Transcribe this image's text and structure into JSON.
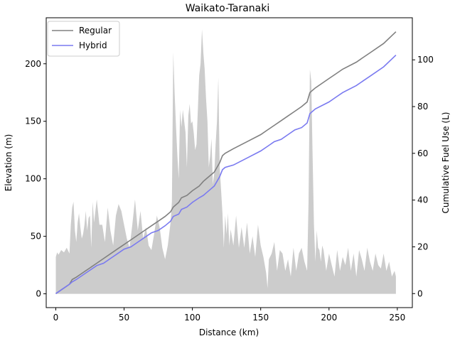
{
  "chart_data": {
    "type": "line",
    "title": "Waikato-Taranaki",
    "xlabel": "Distance (km)",
    "ylabel": "Elevation (m)",
    "y2label": "Cumulative Fuel Use (L)",
    "xlim": [
      -7,
      261
    ],
    "ylim": [
      -12,
      240
    ],
    "y2lim": [
      -6,
      118
    ],
    "xticks": [
      0,
      50,
      100,
      150,
      200,
      250
    ],
    "yticks": [
      0,
      50,
      100,
      150,
      200
    ],
    "y2ticks": [
      0,
      20,
      40,
      60,
      80,
      100
    ],
    "legend": {
      "position": "top-left",
      "entries": [
        "Regular",
        "Hybrid"
      ]
    },
    "elevation": {
      "color": "#cccccc",
      "x": [
        0,
        1,
        2,
        4,
        6,
        8,
        10,
        11,
        12,
        13,
        14,
        15,
        16,
        17,
        18,
        19,
        20,
        21,
        22,
        23,
        24,
        25,
        26,
        27,
        28,
        30,
        32,
        34,
        36,
        38,
        40,
        42,
        44,
        46,
        48,
        50,
        52,
        54,
        56,
        58,
        60,
        62,
        64,
        66,
        68,
        70,
        72,
        74,
        76,
        78,
        80,
        82,
        84,
        85,
        86,
        87,
        88,
        89,
        90,
        91,
        92,
        93,
        94,
        95,
        96,
        97,
        98,
        99,
        100,
        101,
        102,
        103,
        104,
        105,
        106,
        107,
        108,
        109,
        110,
        111,
        112,
        113,
        114,
        115,
        116,
        117,
        118,
        119,
        120,
        121,
        122,
        123,
        124,
        125,
        126,
        127,
        128,
        130,
        132,
        134,
        136,
        138,
        140,
        142,
        144,
        146,
        148,
        150,
        152,
        154,
        155,
        156,
        158,
        160,
        162,
        164,
        166,
        168,
        170,
        172,
        174,
        176,
        178,
        180,
        182,
        184,
        185,
        186,
        187,
        188,
        189,
        190,
        191,
        192,
        193,
        194,
        195,
        196,
        198,
        200,
        202,
        204,
        206,
        208,
        210,
        212,
        214,
        216,
        218,
        220,
        222,
        224,
        226,
        228,
        230,
        232,
        234,
        236,
        238,
        240,
        242,
        244,
        246,
        248,
        249
      ],
      "y": [
        32,
        36,
        34,
        38,
        36,
        40,
        35,
        60,
        75,
        80,
        55,
        45,
        62,
        70,
        58,
        48,
        52,
        60,
        72,
        55,
        66,
        68,
        40,
        80,
        62,
        82,
        60,
        60,
        45,
        75,
        55,
        42,
        68,
        78,
        72,
        60,
        48,
        40,
        60,
        82,
        55,
        72,
        48,
        58,
        42,
        38,
        52,
        68,
        58,
        40,
        30,
        42,
        62,
        80,
        210,
        175,
        145,
        120,
        100,
        160,
        145,
        160,
        150,
        140,
        110,
        155,
        165,
        148,
        150,
        140,
        125,
        130,
        160,
        190,
        200,
        230,
        210,
        195,
        170,
        150,
        110,
        120,
        135,
        95,
        105,
        130,
        150,
        188,
        110,
        90,
        70,
        40,
        68,
        52,
        70,
        42,
        56,
        42,
        68,
        40,
        58,
        40,
        62,
        35,
        50,
        32,
        60,
        42,
        32,
        18,
        5,
        30,
        35,
        45,
        20,
        38,
        35,
        20,
        30,
        15,
        40,
        20,
        35,
        40,
        28,
        20,
        80,
        195,
        185,
        120,
        60,
        28,
        55,
        40,
        38,
        28,
        42,
        38,
        20,
        35,
        25,
        15,
        38,
        20,
        32,
        25,
        40,
        20,
        35,
        15,
        38,
        30,
        20,
        40,
        28,
        20,
        35,
        25,
        22,
        35,
        20,
        28,
        15,
        20,
        15
      ]
    },
    "series": [
      {
        "name": "Regular",
        "color": "#808080",
        "x": [
          0,
          5,
          10,
          12,
          15,
          20,
          25,
          30,
          35,
          40,
          45,
          50,
          55,
          60,
          65,
          70,
          75,
          80,
          84,
          86,
          90,
          92,
          96,
          100,
          105,
          108,
          110,
          114,
          116,
          118,
          120,
          122,
          124,
          130,
          140,
          150,
          155,
          160,
          165,
          170,
          175,
          180,
          184,
          186,
          188,
          190,
          200,
          205,
          210,
          220,
          225,
          230,
          240,
          249
        ],
        "y": [
          0,
          2,
          4,
          6,
          7,
          9,
          11,
          13,
          15,
          17,
          19,
          21,
          23,
          25,
          27,
          29,
          31,
          33,
          35,
          37,
          39,
          41,
          42,
          44,
          46,
          48,
          49,
          51,
          52,
          54,
          56,
          59,
          60,
          62,
          65,
          68,
          70,
          72,
          74,
          76,
          78,
          80,
          82,
          86,
          87,
          88,
          92,
          94,
          96,
          99,
          101,
          103,
          107,
          112
        ]
      },
      {
        "name": "Hybrid",
        "color": "#7a7af0",
        "x": [
          0,
          5,
          10,
          12,
          15,
          20,
          25,
          30,
          35,
          40,
          45,
          50,
          55,
          60,
          65,
          70,
          75,
          80,
          84,
          86,
          90,
          92,
          96,
          100,
          105,
          108,
          110,
          114,
          116,
          118,
          120,
          122,
          124,
          130,
          140,
          150,
          155,
          160,
          165,
          170,
          175,
          180,
          184,
          186,
          188,
          190,
          200,
          205,
          210,
          220,
          225,
          230,
          240,
          249
        ],
        "y": [
          0,
          2,
          4,
          5,
          6,
          8,
          10,
          12,
          13,
          15,
          17,
          19,
          20,
          22,
          24,
          26,
          27,
          29,
          31,
          33,
          34,
          36,
          37,
          39,
          41,
          42,
          43,
          45,
          46,
          48,
          50,
          53,
          54,
          55,
          58,
          61,
          63,
          65,
          66,
          68,
          70,
          71,
          73,
          77,
          78,
          79,
          82,
          84,
          86,
          89,
          91,
          93,
          97,
          102
        ]
      }
    ]
  }
}
